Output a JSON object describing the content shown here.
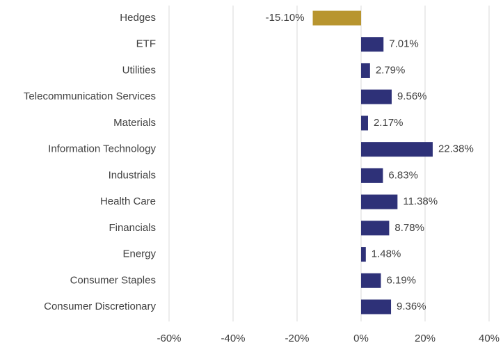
{
  "chart_data": {
    "type": "hbar",
    "categories": [
      "Hedges",
      "ETF",
      "Utilities",
      "Telecommunication Services",
      "Materials",
      "Information Technology",
      "Industrials",
      "Health Care",
      "Financials",
      "Energy",
      "Consumer Staples",
      "Consumer Discretionary"
    ],
    "values": [
      -15.1,
      7.01,
      2.79,
      9.56,
      2.17,
      22.38,
      6.83,
      11.38,
      8.78,
      1.48,
      6.19,
      9.36
    ],
    "value_labels": [
      "-15.10%",
      "7.01%",
      "2.79%",
      "9.56%",
      "2.17%",
      "22.38%",
      "6.83%",
      "11.38%",
      "8.78%",
      "1.48%",
      "6.19%",
      "9.36%"
    ],
    "colors": [
      "#b8952f",
      "#2e3178",
      "#2e3178",
      "#2e3178",
      "#2e3178",
      "#2e3178",
      "#2e3178",
      "#2e3178",
      "#2e3178",
      "#2e3178",
      "#2e3178",
      "#2e3178"
    ],
    "xlim": [
      -60,
      40
    ],
    "xticks": [
      {
        "value": -60,
        "label": "-60%"
      },
      {
        "value": -40,
        "label": "-40%"
      },
      {
        "value": -20,
        "label": "-20%"
      },
      {
        "value": 0,
        "label": "0%"
      },
      {
        "value": 20,
        "label": "20%"
      },
      {
        "value": 40,
        "label": "40%"
      }
    ],
    "grid": true
  }
}
